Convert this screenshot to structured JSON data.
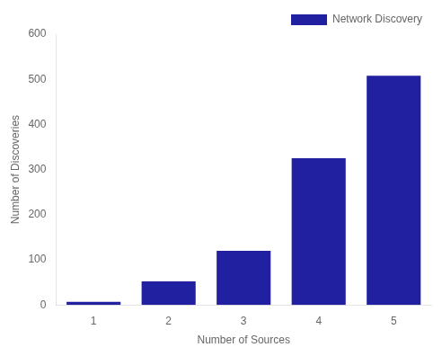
{
  "chart_data": {
    "type": "bar",
    "categories": [
      1,
      2,
      3,
      4,
      5
    ],
    "series": [
      {
        "name": "Network Discovery",
        "color": "#2020A0",
        "values": [
          7,
          52,
          120,
          325,
          508
        ]
      }
    ],
    "xlabel": "Number of Sources",
    "ylabel": "Number of Discoveries",
    "ylim": [
      0,
      600
    ],
    "yticks": [
      0,
      100,
      200,
      300,
      400,
      500,
      600
    ],
    "grid": false,
    "legend": "upper right"
  }
}
